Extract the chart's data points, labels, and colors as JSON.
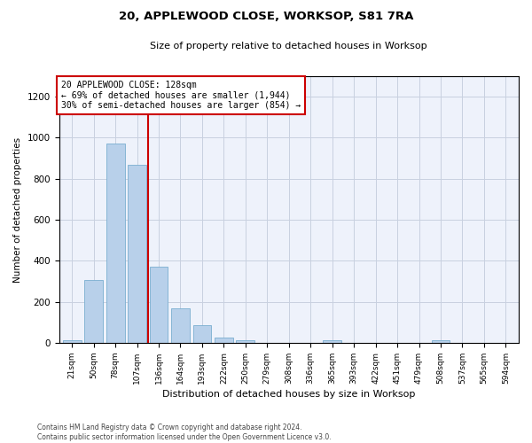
{
  "title": "20, APPLEWOOD CLOSE, WORKSOP, S81 7RA",
  "subtitle": "Size of property relative to detached houses in Worksop",
  "xlabel": "Distribution of detached houses by size in Worksop",
  "ylabel": "Number of detached properties",
  "bar_color": "#b8d0ea",
  "bar_edgecolor": "#7aaed0",
  "background_color": "#eef2fb",
  "grid_color": "#c8d0e0",
  "categories": [
    "21sqm",
    "50sqm",
    "78sqm",
    "107sqm",
    "136sqm",
    "164sqm",
    "193sqm",
    "222sqm",
    "250sqm",
    "279sqm",
    "308sqm",
    "336sqm",
    "365sqm",
    "393sqm",
    "422sqm",
    "451sqm",
    "479sqm",
    "508sqm",
    "537sqm",
    "565sqm",
    "594sqm"
  ],
  "values": [
    13,
    305,
    970,
    870,
    370,
    170,
    85,
    25,
    13,
    0,
    0,
    0,
    13,
    0,
    0,
    0,
    0,
    13,
    0,
    0,
    0
  ],
  "ylim": [
    0,
    1300
  ],
  "yticks": [
    0,
    200,
    400,
    600,
    800,
    1000,
    1200
  ],
  "property_line_x": 3.5,
  "annotation_line1": "20 APPLEWOOD CLOSE: 128sqm",
  "annotation_line2": "← 69% of detached houses are smaller (1,944)",
  "annotation_line3": "30% of semi-detached houses are larger (854) →",
  "annotation_box_color": "#cc0000",
  "property_line_color": "#cc0000",
  "footer_line1": "Contains HM Land Registry data © Crown copyright and database right 2024.",
  "footer_line2": "Contains public sector information licensed under the Open Government Licence v3.0."
}
